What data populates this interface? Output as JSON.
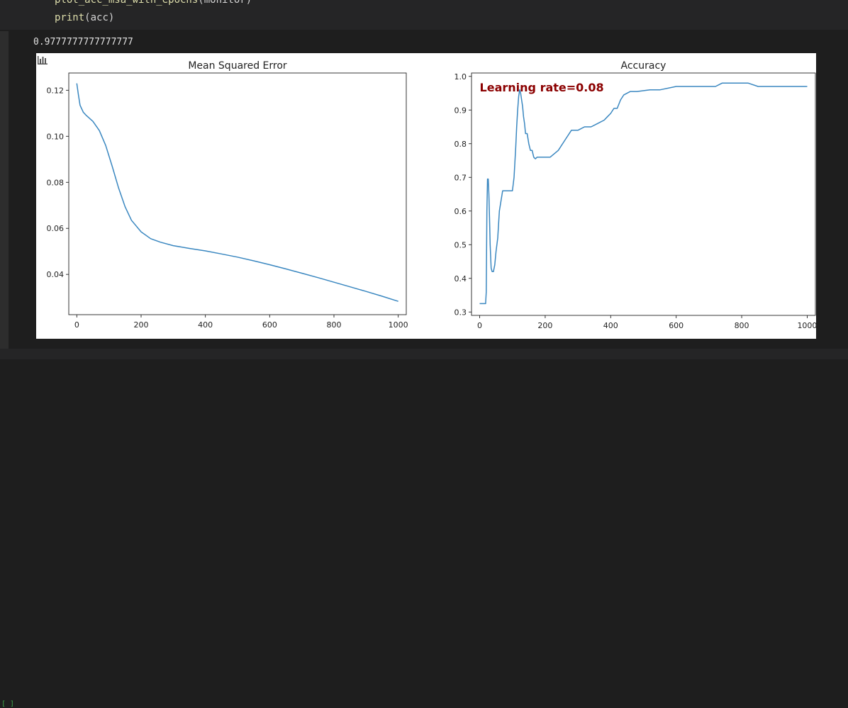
{
  "code": {
    "line1_fn": "plot_acc_msa_with_epochs",
    "line1_args": "(monitor)",
    "line2_fn": "print",
    "line2_args": "(acc)"
  },
  "output": {
    "stdout": "0.9777777777777777"
  },
  "footer": {
    "cell_counter": "[ ]"
  },
  "colors": {
    "line": "#3a87c0",
    "annotation": "#8b0000",
    "background": "#1e1e1e"
  },
  "chart_data": [
    {
      "type": "line",
      "title": "Mean Squared Error",
      "xlabel": "",
      "ylabel": "",
      "xlim": [
        -25,
        1025
      ],
      "ylim": [
        0.0225,
        0.1275
      ],
      "xticks": [
        0,
        200,
        400,
        600,
        800,
        1000
      ],
      "yticks": [
        0.04,
        0.06,
        0.08,
        0.1,
        0.12
      ],
      "ytick_labels": [
        "0.04",
        "0.06",
        "0.08",
        "0.10",
        "0.12"
      ],
      "series": [
        {
          "name": "mse",
          "x": [
            0,
            5,
            10,
            20,
            30,
            50,
            70,
            90,
            110,
            130,
            150,
            170,
            200,
            230,
            260,
            300,
            350,
            400,
            450,
            500,
            550,
            600,
            650,
            700,
            750,
            800,
            850,
            900,
            950,
            1000
          ],
          "y": [
            0.123,
            0.118,
            0.1135,
            0.1105,
            0.109,
            0.1065,
            0.1025,
            0.096,
            0.087,
            0.0775,
            0.0695,
            0.0635,
            0.0585,
            0.0555,
            0.054,
            0.0525,
            0.0513,
            0.0502,
            0.0489,
            0.0475,
            0.0459,
            0.0442,
            0.0424,
            0.0405,
            0.0386,
            0.0366,
            0.0346,
            0.0326,
            0.0305,
            0.0283
          ]
        }
      ]
    },
    {
      "type": "line",
      "title": "Accuracy",
      "xlabel": "",
      "ylabel": "",
      "xlim": [
        -25,
        1025
      ],
      "ylim": [
        0.29,
        1.01
      ],
      "xticks": [
        0,
        200,
        400,
        600,
        800,
        1000
      ],
      "yticks": [
        0.3,
        0.4,
        0.5,
        0.6,
        0.7,
        0.8,
        0.9,
        1.0
      ],
      "ytick_labels": [
        "0.3",
        "0.4",
        "0.5",
        "0.6",
        "0.7",
        "0.8",
        "0.9",
        "1.0"
      ],
      "annotation": "Learning rate=0.08",
      "series": [
        {
          "name": "accuracy",
          "x": [
            0,
            18,
            20,
            22,
            24,
            26,
            28,
            30,
            32,
            35,
            38,
            42,
            46,
            50,
            55,
            60,
            65,
            70,
            75,
            80,
            85,
            90,
            95,
            100,
            105,
            110,
            113,
            116,
            119,
            122,
            125,
            128,
            131,
            134,
            137,
            140,
            145,
            150,
            155,
            160,
            165,
            170,
            175,
            180,
            190,
            200,
            215,
            240,
            260,
            280,
            300,
            320,
            340,
            360,
            380,
            390,
            400,
            410,
            420,
            430,
            440,
            460,
            480,
            520,
            550,
            600,
            650,
            700,
            720,
            740,
            780,
            820,
            850,
            900,
            950,
            1000
          ],
          "y": [
            0.325,
            0.325,
            0.36,
            0.6,
            0.695,
            0.695,
            0.65,
            0.58,
            0.5,
            0.43,
            0.42,
            0.42,
            0.44,
            0.48,
            0.52,
            0.6,
            0.63,
            0.66,
            0.66,
            0.66,
            0.66,
            0.66,
            0.66,
            0.66,
            0.7,
            0.79,
            0.85,
            0.9,
            0.94,
            0.96,
            0.95,
            0.93,
            0.91,
            0.88,
            0.86,
            0.83,
            0.83,
            0.8,
            0.78,
            0.78,
            0.76,
            0.755,
            0.76,
            0.76,
            0.76,
            0.76,
            0.76,
            0.78,
            0.81,
            0.84,
            0.84,
            0.85,
            0.85,
            0.86,
            0.87,
            0.88,
            0.89,
            0.905,
            0.905,
            0.93,
            0.945,
            0.955,
            0.955,
            0.96,
            0.96,
            0.97,
            0.97,
            0.97,
            0.97,
            0.98,
            0.98,
            0.98,
            0.97,
            0.97,
            0.97,
            0.97
          ]
        }
      ]
    }
  ]
}
